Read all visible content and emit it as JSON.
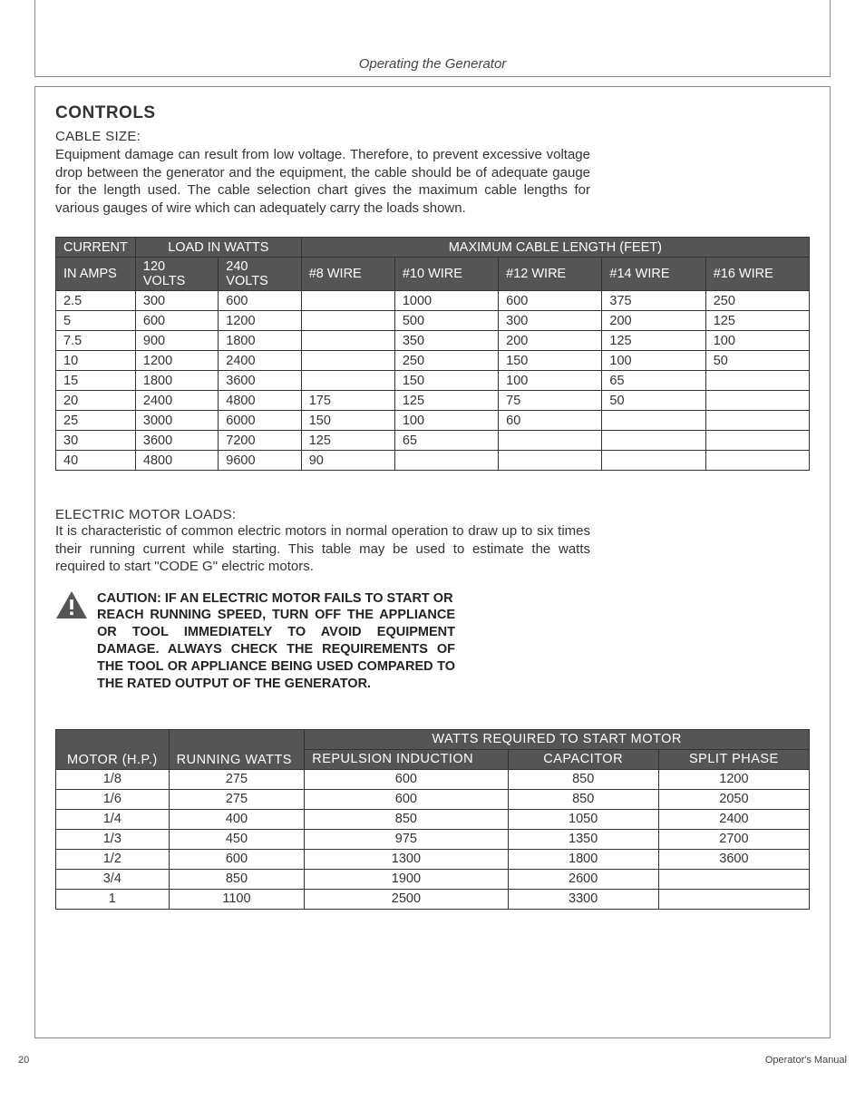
{
  "header_title": "Operating the Generator",
  "section_title": "CONTROLS",
  "cable_label": "CABLE SIZE:",
  "cable_para": "Equipment damage can result from low voltage. Therefore, to prevent excessive voltage drop between the generator and the equipment, the cable should be of adequate gauge for the length used. The cable selection chart gives the maximum cable lengths for various gauges of wire which can adequately carry the loads shown.",
  "cable_table": {
    "hdr_current": "CURRENT",
    "hdr_load": "LOAD IN WATTS",
    "hdr_max": "MAXIMUM CABLE LENGTH (FEET)",
    "hdr_amps": "IN AMPS",
    "hdr_120": "120 VOLTS",
    "hdr_240": "240 VOLTS",
    "hdr_w8": "#8 WIRE",
    "hdr_w10": "#10 WIRE",
    "hdr_w12": "#12 WIRE",
    "hdr_w14": "#14 WIRE",
    "hdr_w16": "#16 WIRE",
    "rows": [
      [
        "2.5",
        "300",
        "600",
        "",
        "1000",
        "600",
        "375",
        "250"
      ],
      [
        "5",
        "600",
        "1200",
        "",
        "500",
        "300",
        "200",
        "125"
      ],
      [
        "7.5",
        "900",
        "1800",
        "",
        "350",
        "200",
        "125",
        "100"
      ],
      [
        "10",
        "1200",
        "2400",
        "",
        "250",
        "150",
        "100",
        "50"
      ],
      [
        "15",
        "1800",
        "3600",
        "",
        "150",
        "100",
        "65",
        ""
      ],
      [
        "20",
        "2400",
        "4800",
        "175",
        "125",
        "75",
        "50",
        ""
      ],
      [
        "25",
        "3000",
        "6000",
        "150",
        "100",
        "60",
        "",
        ""
      ],
      [
        "30",
        "3600",
        "7200",
        "125",
        "65",
        "",
        "",
        ""
      ],
      [
        "40",
        "4800",
        "9600",
        "90",
        "",
        "",
        "",
        ""
      ]
    ]
  },
  "motor_label": "ELECTRIC MOTOR LOADS:",
  "motor_para": "It is characteristic of common electric motors in normal operation to draw up to six times their running current while starting. This table may be used to estimate the watts required to start \"CODE G\" electric motors.",
  "caution_line1": "CAUTION: IF AN ELECTRIC MOTOR FAILS TO START OR",
  "caution_rest": "REACH RUNNING SPEED, TURN OFF THE APPLIANCE OR TOOL IMMEDIATELY TO AVOID EQUIPMENT DAMAGE. ALWAYS CHECK THE REQUIREMENTS OF THE TOOL OR APPLIANCE BEING USED COMPARED TO THE RATED OUTPUT OF THE GENERATOR.",
  "motor_table": {
    "hdr_watts": "WATTS REQUIRED TO START MOTOR",
    "hdr_hp": "MOTOR (H.P.)",
    "hdr_rw": "RUNNING WATTS",
    "hdr_ri": "REPULSION INDUCTION",
    "hdr_cap": "CAPACITOR",
    "hdr_sp": "SPLIT PHASE",
    "rows": [
      [
        "1/8",
        "275",
        "600",
        "850",
        "1200"
      ],
      [
        "1/6",
        "275",
        "600",
        "850",
        "2050"
      ],
      [
        "1/4",
        "400",
        "850",
        "1050",
        "2400"
      ],
      [
        "1/3",
        "450",
        "975",
        "1350",
        "2700"
      ],
      [
        "1/2",
        "600",
        "1300",
        "1800",
        "3600"
      ],
      [
        "3/4",
        "850",
        "1900",
        "2600",
        ""
      ],
      [
        "1",
        "1100",
        "2500",
        "3300",
        ""
      ]
    ]
  },
  "page_num": "20",
  "footer_right": "Operator's Manual",
  "colors": {
    "header_bg": "#555555",
    "border": "#333333",
    "text": "#333333"
  }
}
